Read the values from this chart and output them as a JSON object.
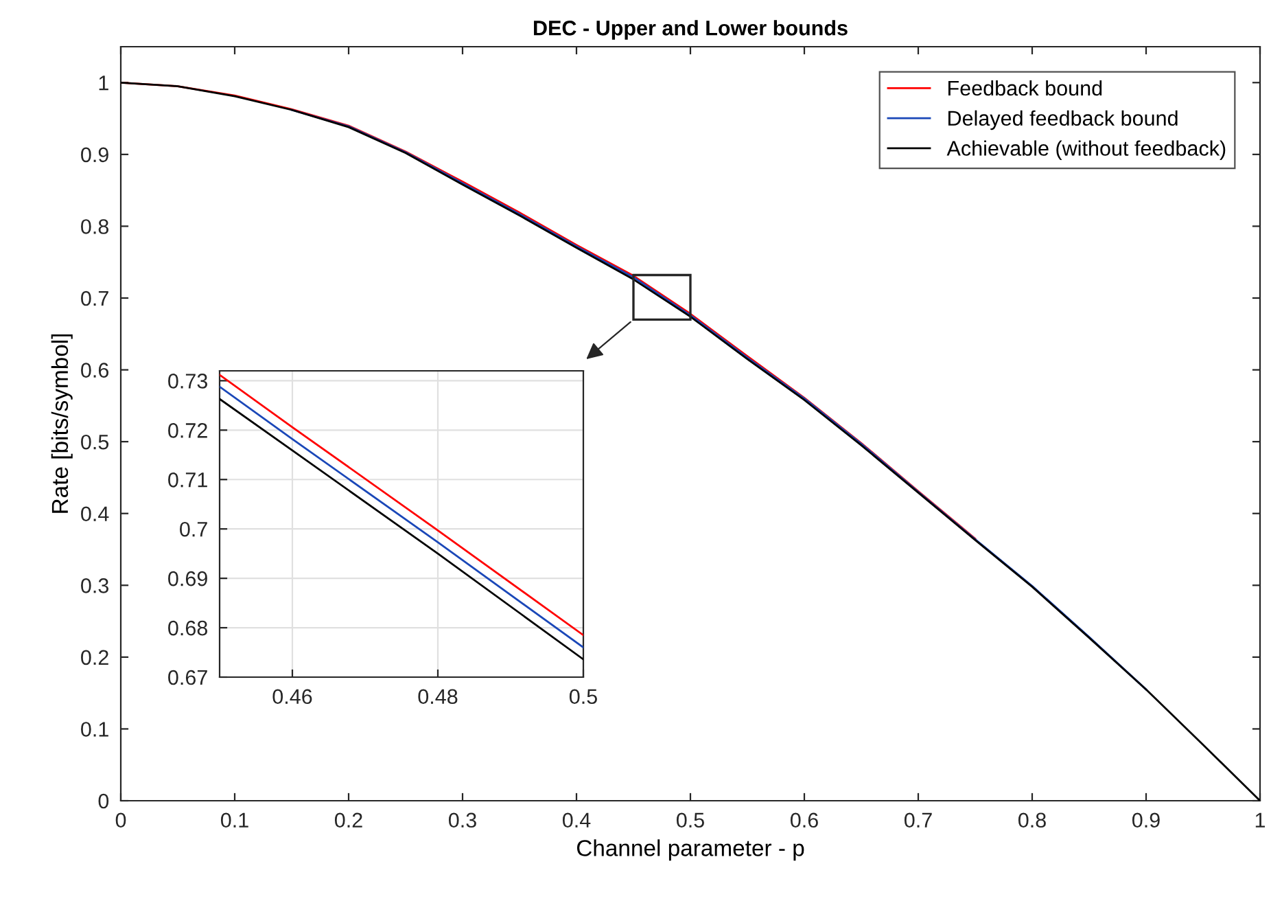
{
  "chart_data": [
    {
      "type": "line",
      "title": "DEC - Upper and Lower bounds",
      "xlabel": "Channel parameter - p",
      "ylabel": "Rate [bits/symbol]",
      "x": [
        0,
        0.05,
        0.1,
        0.15,
        0.2,
        0.25,
        0.3,
        0.35,
        0.4,
        0.45,
        0.5,
        0.55,
        0.6,
        0.65,
        0.7,
        0.75,
        0.8,
        0.85,
        0.9,
        0.95,
        1
      ],
      "series": [
        {
          "name": "Feedback bound",
          "color": "#ff0000",
          "values": [
            1,
            0.995,
            0.982,
            0.963,
            0.94,
            0.904,
            0.862,
            0.819,
            0.774,
            0.731,
            0.678,
            0.619,
            0.561,
            0.498,
            0.431,
            0.365,
            null,
            null,
            null,
            null,
            null
          ]
        },
        {
          "name": "Delayed feedback bound",
          "color": "#1a47b8",
          "values": [
            null,
            null,
            null,
            0.962,
            0.939,
            0.903,
            0.86,
            0.817,
            0.772,
            0.729,
            0.676,
            0.617,
            0.56,
            0.497,
            0.43,
            0.364,
            0.299,
            0.228,
            0.155,
            null,
            null
          ]
        },
        {
          "name": "Achievable (without feedback)",
          "color": "#000000",
          "values": [
            1,
            0.995,
            0.981,
            0.962,
            0.938,
            0.902,
            0.858,
            0.815,
            0.77,
            0.726,
            0.674,
            0.615,
            0.558,
            0.495,
            0.429,
            0.363,
            0.298,
            0.227,
            0.155,
            0.078,
            0
          ]
        }
      ],
      "xlim": [
        0,
        1
      ],
      "ylim": [
        0,
        1.05
      ],
      "xticks": [
        0,
        0.1,
        0.2,
        0.3,
        0.4,
        0.5,
        0.6,
        0.7,
        0.8,
        0.9,
        1
      ],
      "yticks": [
        0,
        0.1,
        0.2,
        0.3,
        0.4,
        0.5,
        0.6,
        0.7,
        0.8,
        0.9,
        1
      ],
      "grid": false,
      "legend": "top right",
      "line_style": "solid"
    },
    {
      "type": "line",
      "x": [
        0.45,
        0.46,
        0.48,
        0.5
      ],
      "series": [
        {
          "color": "#ff0000",
          "values": [
            0.7312,
            0.7206,
            0.6997,
            0.6785
          ]
        },
        {
          "color": "#1a47b8",
          "values": [
            0.7288,
            0.7182,
            0.6973,
            0.676
          ]
        },
        {
          "color": "#000000",
          "values": [
            0.7263,
            0.7159,
            0.695,
            0.6736
          ]
        }
      ],
      "xlim": [
        0.45,
        0.5
      ],
      "ylim": [
        0.67,
        0.732
      ],
      "xticks": [
        0.46,
        0.48,
        0.5
      ],
      "yticks": [
        0.67,
        0.68,
        0.69,
        0.7,
        0.71,
        0.72,
        0.73
      ],
      "grid": true,
      "legend": false,
      "line_style": "solid"
    }
  ]
}
